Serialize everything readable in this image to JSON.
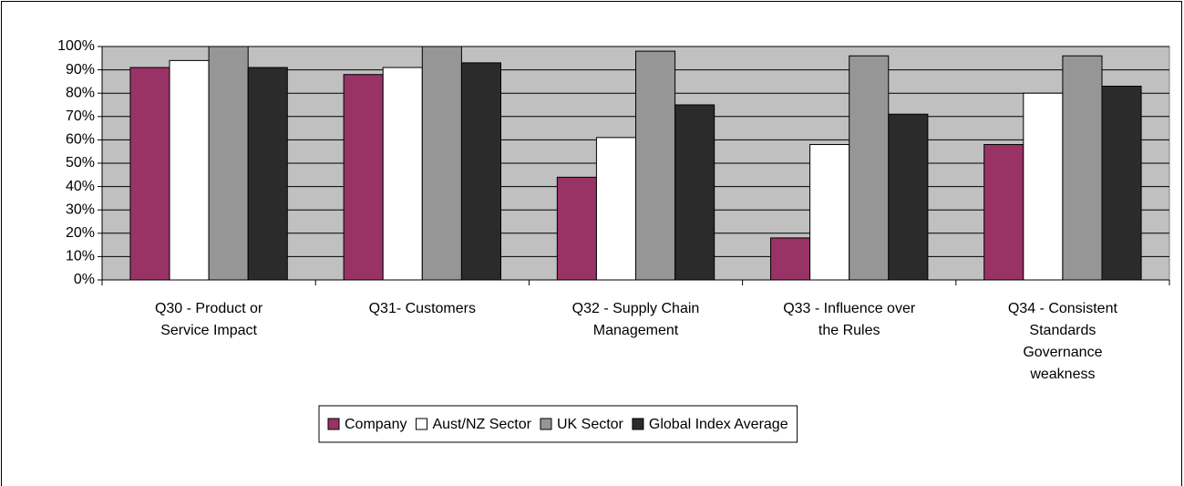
{
  "chart_data": {
    "type": "bar",
    "categories": [
      [
        "Q30 - Product or",
        "Service Impact"
      ],
      [
        "Q31- Customers"
      ],
      [
        "Q32 - Supply Chain",
        "Management"
      ],
      [
        "Q33 - Influence over",
        "the Rules"
      ],
      [
        "Q34 - Consistent",
        "Standards",
        "Governance",
        "weakness"
      ]
    ],
    "series": [
      {
        "name": "Company",
        "color": "#993366",
        "values": [
          91,
          88,
          44,
          18,
          58
        ]
      },
      {
        "name": "Aust/NZ Sector",
        "color": "#ffffff",
        "values": [
          94,
          91,
          61,
          58,
          80
        ]
      },
      {
        "name": "UK Sector",
        "color": "#969696",
        "values": [
          100,
          100,
          98,
          96,
          96
        ]
      },
      {
        "name": "Global Index Average",
        "color": "#2b2b2b",
        "values": [
          91,
          93,
          75,
          71,
          83
        ]
      }
    ],
    "ylim": [
      0,
      100
    ],
    "yticks": [
      {
        "value": 0,
        "label": "0%"
      },
      {
        "value": 10,
        "label": "10%"
      },
      {
        "value": 20,
        "label": "20%"
      },
      {
        "value": 30,
        "label": "30%"
      },
      {
        "value": 40,
        "label": "40%"
      },
      {
        "value": 50,
        "label": "50%"
      },
      {
        "value": 60,
        "label": "60%"
      },
      {
        "value": 70,
        "label": "70%"
      },
      {
        "value": 80,
        "label": "80%"
      },
      {
        "value": 90,
        "label": "90%"
      },
      {
        "value": 100,
        "label": "100%"
      }
    ],
    "grid": true,
    "legend": "bottom"
  }
}
